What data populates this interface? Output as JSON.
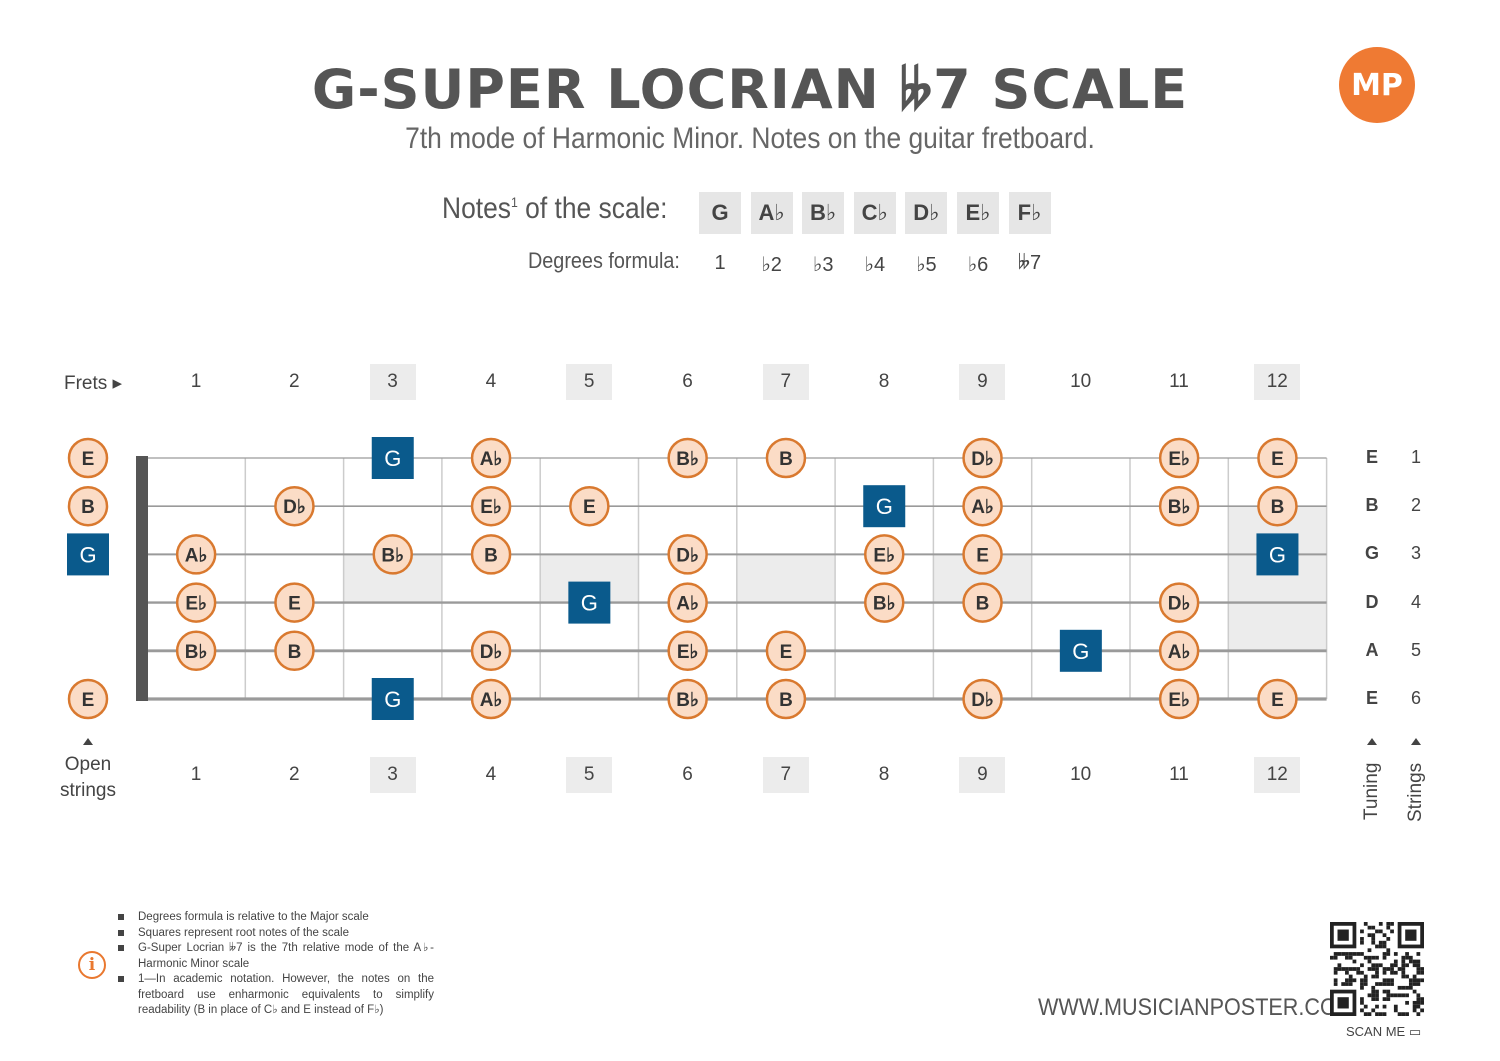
{
  "header": {
    "title": "G-SUPER LOCRIAN 𝄫7 SCALE",
    "subtitle": "7th mode of Harmonic Minor. Notes on the guitar fretboard.",
    "logo_text": "MP"
  },
  "scale": {
    "notes_label": "Notes",
    "notes_sup": "1",
    "notes_label_suffix": " of the scale:",
    "degrees_label": "Degrees formula:",
    "notes": [
      "G",
      "A♭",
      "B♭",
      "C♭",
      "D♭",
      "E♭",
      "F♭"
    ],
    "degrees": [
      "1",
      "♭2",
      "♭3",
      "♭4",
      "♭5",
      "♭6",
      "𝄫7"
    ]
  },
  "fretboard": {
    "frets_label": "Frets",
    "fret_numbers": [
      "1",
      "2",
      "3",
      "4",
      "5",
      "6",
      "7",
      "8",
      "9",
      "10",
      "11",
      "12"
    ],
    "highlighted_frets": [
      3,
      5,
      7,
      9,
      12
    ],
    "open_label_line1": "Open",
    "open_label_line2": "strings",
    "tuning": [
      "E",
      "B",
      "G",
      "D",
      "A",
      "E"
    ],
    "string_numbers": [
      "1",
      "2",
      "3",
      "4",
      "5",
      "6"
    ],
    "tuning_label": "Tuning",
    "strings_label": "Strings",
    "root": "G",
    "positions": [
      {
        "string": 1,
        "notes": [
          "E",
          "",
          "",
          "G",
          "A♭",
          "",
          "B♭",
          "B",
          "",
          "D♭",
          "",
          "E♭",
          "E"
        ]
      },
      {
        "string": 2,
        "notes": [
          "B",
          "",
          "D♭",
          "",
          "E♭",
          "E",
          "",
          "",
          "G",
          "A♭",
          "",
          "B♭",
          "B"
        ]
      },
      {
        "string": 3,
        "notes": [
          "G",
          "A♭",
          "",
          "B♭",
          "B",
          "",
          "D♭",
          "",
          "E♭",
          "E",
          "",
          "",
          "G"
        ]
      },
      {
        "string": 4,
        "notes": [
          "",
          "E♭",
          "E",
          "",
          "",
          "G",
          "A♭",
          "",
          "B♭",
          "B",
          "",
          "D♭",
          ""
        ]
      },
      {
        "string": 5,
        "notes": [
          "",
          "B♭",
          "B",
          "",
          "D♭",
          "",
          "E♭",
          "E",
          "",
          "",
          "G",
          "A♭",
          ""
        ]
      },
      {
        "string": 6,
        "notes": [
          "E",
          "",
          "",
          "G",
          "A♭",
          "",
          "B♭",
          "B",
          "",
          "D♭",
          "",
          "E♭",
          "E"
        ]
      }
    ]
  },
  "colors": {
    "root_fill": "#0a5a8c",
    "note_fill": "#fbdcc6",
    "note_stroke": "#d9792f",
    "nut": "#555555",
    "fret_line": "#cccccc",
    "string_line": "#9a9a9a",
    "inlay_fill": "#ececec"
  },
  "footnotes": [
    "Degrees formula is relative to the Major scale",
    "Squares represent root notes of the scale",
    "G-Super Locrian 𝄫7 is the 7th relative mode of the A♭-Harmonic Minor scale",
    "1—In academic notation. However, the notes on the fretboard use enharmonic equivalents to simplify readability (B in place of C♭ and E instead of F♭)"
  ],
  "footer": {
    "website": "WWW.MUSICIANPOSTER.COM",
    "scan_me": "SCAN ME"
  }
}
